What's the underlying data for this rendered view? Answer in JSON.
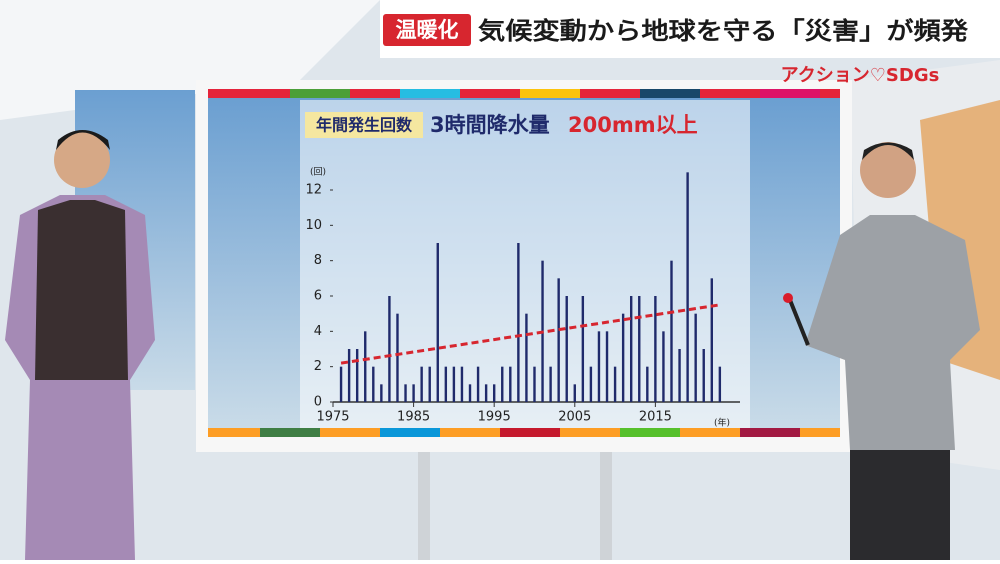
{
  "header": {
    "tag": "温暖化",
    "headline": "気候変動から地球を守る「災害」が頻発",
    "logo": "アクション♡SDGs"
  },
  "chart_data": {
    "type": "bar",
    "title_label": "年間発生回数",
    "title": "3時間降水量",
    "title_highlight": "200mm以上",
    "y_unit": "(回)",
    "x_unit": "(年)",
    "x": [
      1976,
      1977,
      1978,
      1979,
      1980,
      1981,
      1982,
      1983,
      1984,
      1985,
      1986,
      1987,
      1988,
      1989,
      1990,
      1991,
      1992,
      1993,
      1994,
      1995,
      1996,
      1997,
      1998,
      1999,
      2000,
      2001,
      2002,
      2003,
      2004,
      2005,
      2006,
      2007,
      2008,
      2009,
      2010,
      2011,
      2012,
      2013,
      2014,
      2015,
      2016,
      2017,
      2018,
      2019,
      2020,
      2021,
      2022,
      2023
    ],
    "values": [
      2,
      3,
      3,
      4,
      2,
      1,
      6,
      5,
      1,
      1,
      2,
      2,
      9,
      2,
      2,
      2,
      1,
      2,
      1,
      1,
      2,
      2,
      9,
      5,
      2,
      8,
      2,
      7,
      6,
      1,
      6,
      2,
      4,
      4,
      2,
      5,
      6,
      6,
      2,
      6,
      4,
      8,
      3,
      13,
      5,
      3,
      7,
      2
    ],
    "color": "#1f2a6b",
    "trend": {
      "x": [
        1976,
        2023
      ],
      "values": [
        2.2,
        5.5
      ],
      "color": "#d7262f"
    },
    "xlim": [
      1975,
      2025.5
    ],
    "ylim": [
      0,
      12
    ],
    "xticks": [
      1975,
      1985,
      1995,
      2005,
      2015
    ],
    "yticks": [
      0,
      2,
      4,
      6,
      8,
      10,
      12
    ]
  }
}
